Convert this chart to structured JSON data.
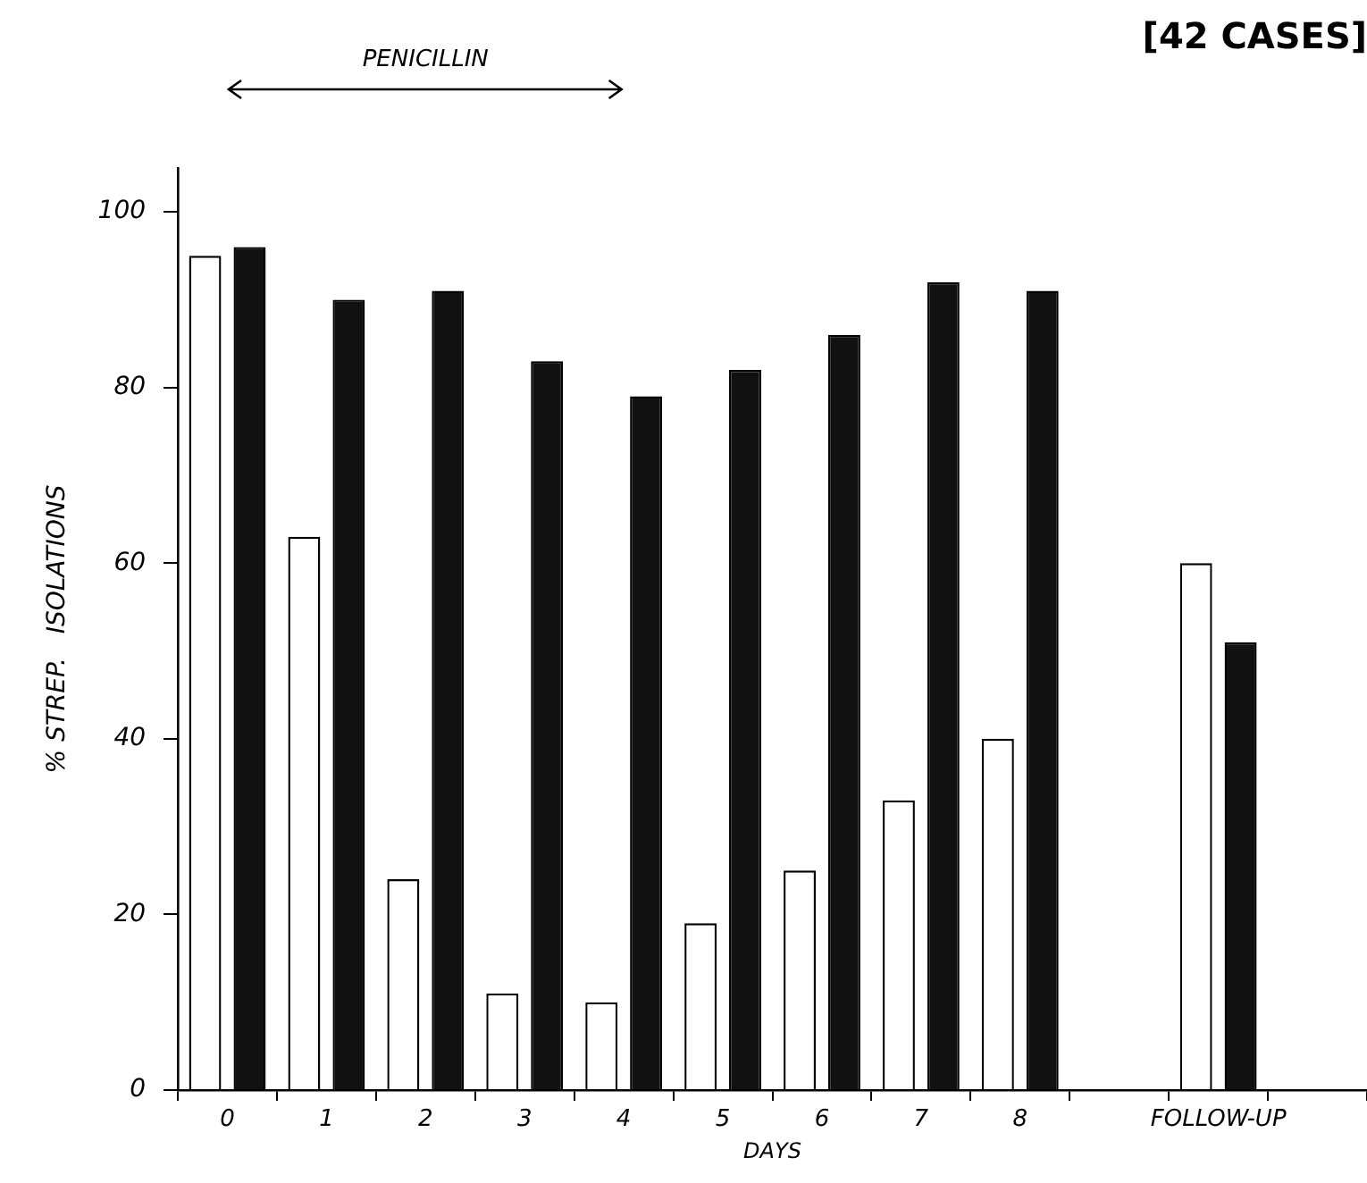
{
  "chart_data": {
    "type": "bar",
    "title": "[42 CASES]",
    "xlabel": "DAYS",
    "ylabel": "% STREP.   ISOLATIONS",
    "annotations": [
      "PENICILLIN"
    ],
    "categories": [
      "0",
      "1",
      "2",
      "3",
      "4",
      "5",
      "6",
      "7",
      "8",
      null,
      "FOLLOW-UP",
      null
    ],
    "series": [
      {
        "color": "#ffffff",
        "values": [
          95,
          63,
          24,
          11,
          10,
          19,
          25,
          33,
          40,
          null,
          60,
          null
        ]
      },
      {
        "color": "#111111",
        "values": [
          96,
          90,
          91,
          83,
          79,
          82,
          86,
          92,
          91,
          null,
          51,
          null
        ]
      }
    ],
    "ylim": [
      0,
      105
    ],
    "yticks": [
      0,
      20,
      40,
      60,
      80,
      100
    ],
    "grid": false,
    "legend": false
  }
}
